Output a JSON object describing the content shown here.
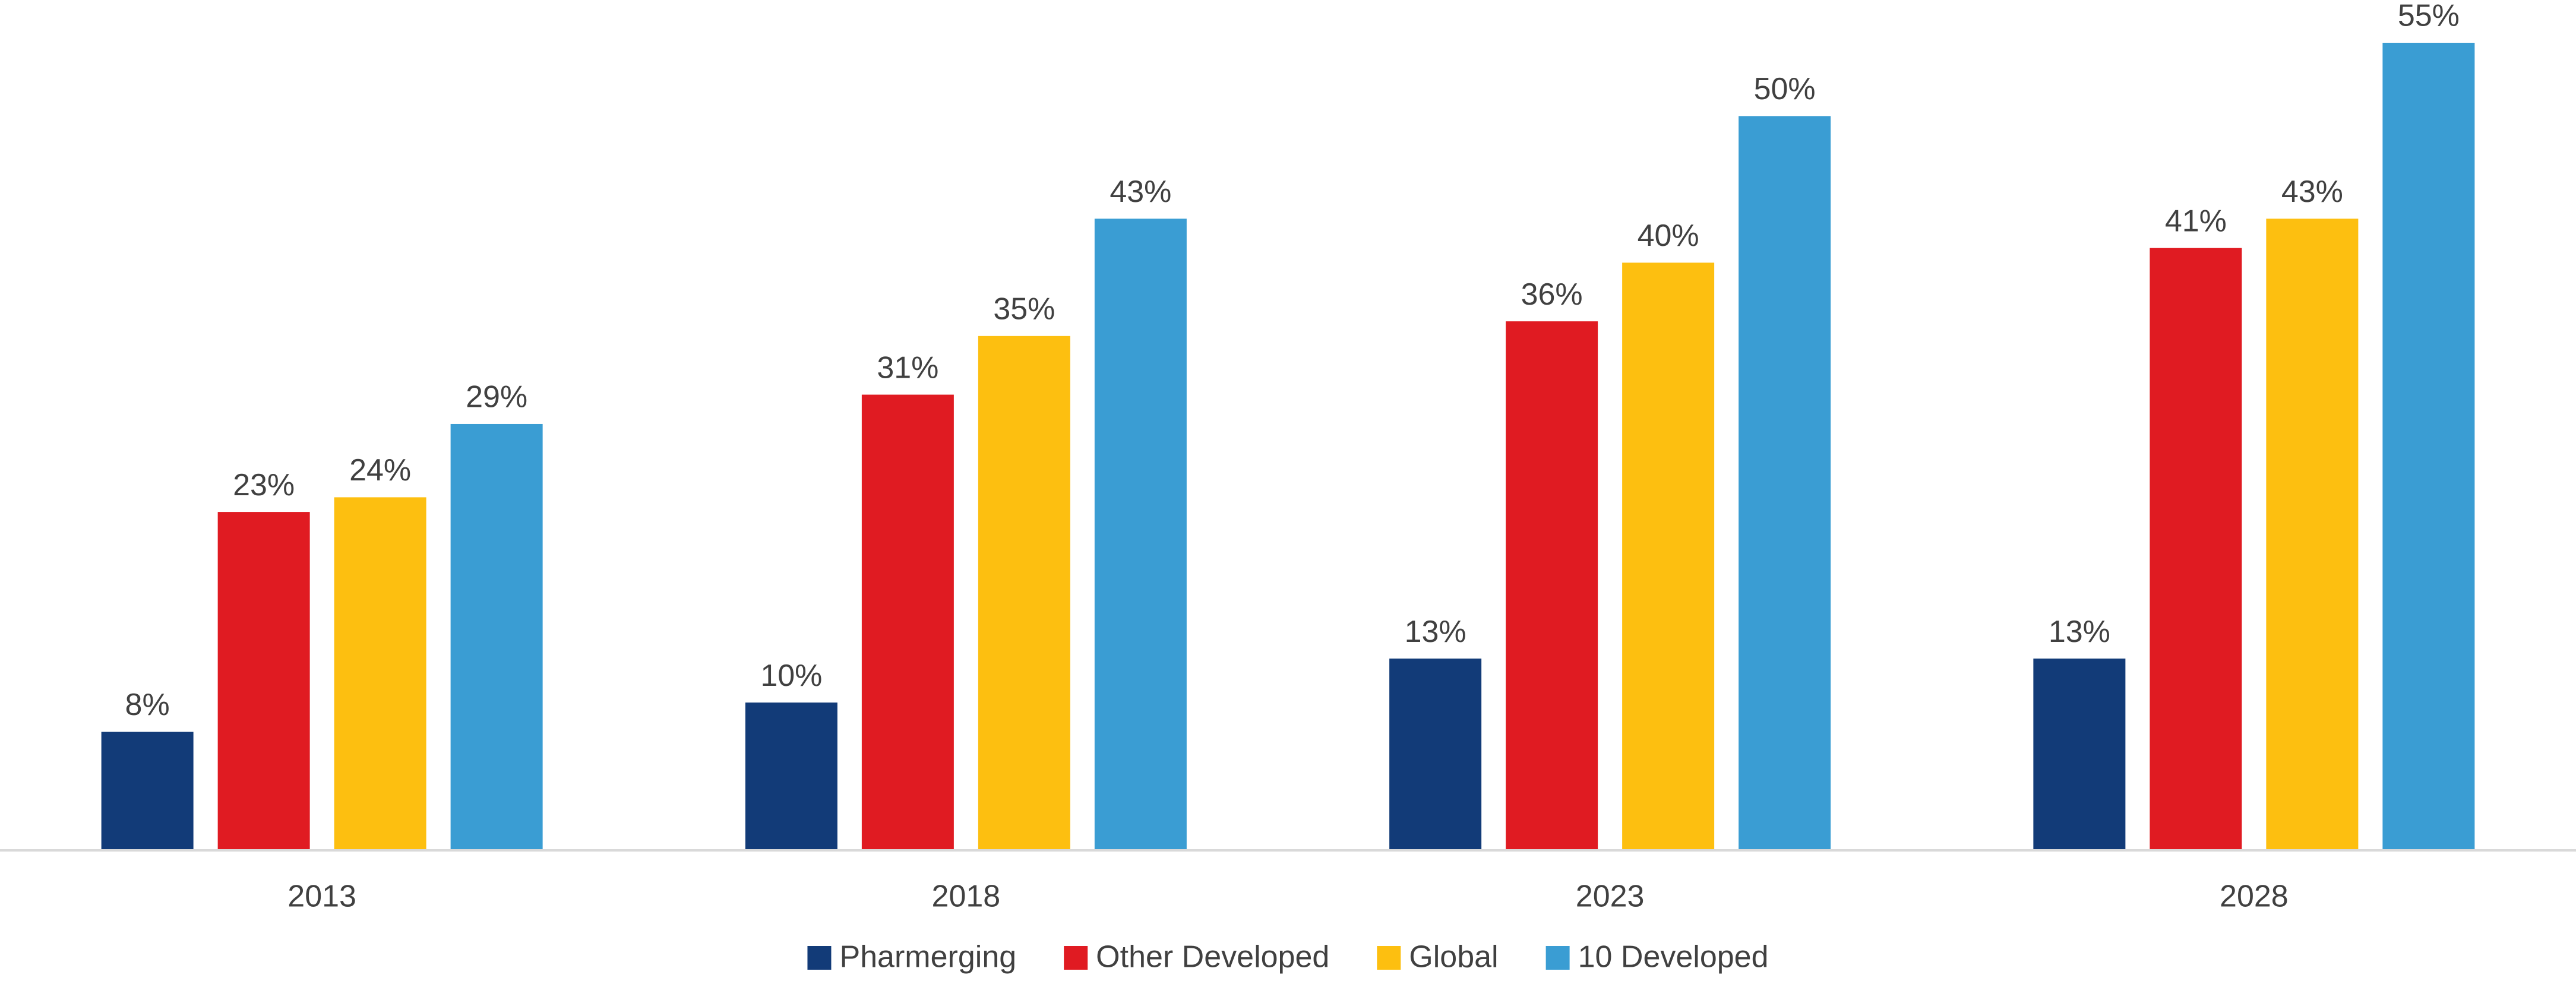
{
  "chart_data": {
    "type": "bar",
    "categories": [
      "2013",
      "2018",
      "2023",
      "2028"
    ],
    "series": [
      {
        "name": "Pharmerging",
        "color": "#123b78",
        "values": [
          8,
          10,
          13,
          13
        ],
        "value_labels": [
          "8%",
          "10%",
          "13%",
          "13%"
        ]
      },
      {
        "name": "Other Developed",
        "color": "#e01b22",
        "values": [
          23,
          31,
          36,
          41
        ],
        "value_labels": [
          "23%",
          "31%",
          "36%",
          "41%"
        ]
      },
      {
        "name": "Global",
        "color": "#fdbf10",
        "values": [
          24,
          35,
          40,
          43
        ],
        "value_labels": [
          "24%",
          "35%",
          "40%",
          "43%"
        ]
      },
      {
        "name": "10 Developed",
        "color": "#3a9dd3",
        "values": [
          29,
          43,
          50,
          55
        ],
        "value_labels": [
          "29%",
          "43%",
          "50%",
          "55%"
        ]
      }
    ],
    "ylim": [
      0,
      55
    ],
    "legend": "bottom"
  }
}
